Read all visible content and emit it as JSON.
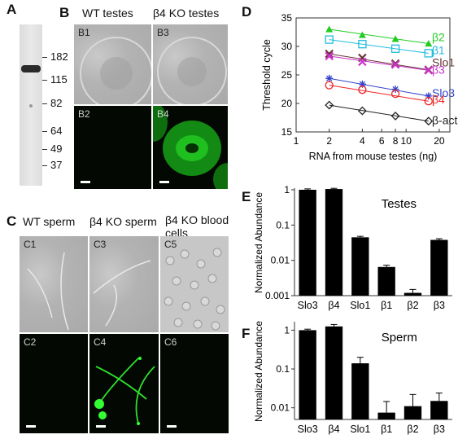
{
  "panel_labels": {
    "a": "A",
    "b": "B",
    "c": "C",
    "d": "D",
    "e": "E",
    "f": "F"
  },
  "panel_a": {
    "mw_markers": [
      "182",
      "115",
      "82",
      "64",
      "49",
      "37"
    ]
  },
  "panel_b": {
    "titles": [
      "WT testes",
      "β4 KO testes"
    ],
    "sublabels": [
      "B1",
      "B3",
      "B2",
      "B4"
    ]
  },
  "panel_c": {
    "titles": [
      "WT sperm",
      "β4 KO sperm",
      "β4 KO blood cells"
    ],
    "sublabels": [
      "C1",
      "C3",
      "C5",
      "C2",
      "C4",
      "C6"
    ]
  },
  "chart_data": [
    {
      "id": "D",
      "type": "scatter",
      "xlabel": "RNA from mouse testes (ng)",
      "ylabel": "Threshold cycle",
      "xscale": "log",
      "xlim": [
        1,
        25
      ],
      "ylim": [
        15,
        35
      ],
      "xticks": [
        "1",
        "2",
        "4",
        "6",
        "8",
        "10",
        "20"
      ],
      "yticks": [
        "15",
        "20",
        "25",
        "30",
        "35"
      ],
      "x": [
        2,
        4,
        8,
        16
      ],
      "series": [
        {
          "name": "β2",
          "color": "#22cc22",
          "marker": "triangle",
          "values": [
            33.0,
            32.0,
            31.3,
            30.5
          ]
        },
        {
          "name": "β1",
          "color": "#22bbdd",
          "marker": "square",
          "values": [
            31.2,
            30.4,
            29.6,
            28.8
          ]
        },
        {
          "name": "Slo1",
          "color": "#663333",
          "marker": "x",
          "values": [
            28.7,
            28.0,
            27.0,
            25.9
          ]
        },
        {
          "name": "β3",
          "color": "#cc33cc",
          "marker": "x",
          "values": [
            28.3,
            27.3,
            26.8,
            25.8
          ]
        },
        {
          "name": "Slo3",
          "color": "#3344cc",
          "marker": "star",
          "values": [
            24.4,
            23.4,
            22.5,
            21.3
          ]
        },
        {
          "name": "β4",
          "color": "#ee2222",
          "marker": "circle",
          "values": [
            23.2,
            22.4,
            21.7,
            20.4
          ]
        },
        {
          "name": "β-actin",
          "color": "#222222",
          "marker": "diamond",
          "values": [
            19.7,
            18.7,
            17.8,
            16.9
          ]
        }
      ]
    },
    {
      "id": "E",
      "type": "bar",
      "title": "Testes",
      "ylabel": "Normalized Abundance",
      "yscale": "log",
      "ylim": [
        0.001,
        1
      ],
      "yticks": [
        "1",
        "0.1",
        "0.01",
        "0.001"
      ],
      "categories": [
        "Slo3",
        "β4",
        "Slo1",
        "β1",
        "β2",
        "β3"
      ],
      "values": [
        1.0,
        1.05,
        0.045,
        0.0065,
        0.0012,
        0.038
      ],
      "errors": [
        0.06,
        0.05,
        0.003,
        0.0008,
        0.0003,
        0.003
      ]
    },
    {
      "id": "F",
      "type": "bar",
      "title": "Sperm",
      "ylabel": "Normalized Abundance",
      "yscale": "log",
      "ylim": [
        0.005,
        1.5
      ],
      "yticks": [
        "1",
        "0.1",
        "0.01"
      ],
      "categories": [
        "Slo3",
        "β4",
        "Slo1",
        "β1",
        "β2",
        "β3"
      ],
      "values": [
        1.0,
        1.25,
        0.14,
        0.0075,
        0.011,
        0.015
      ],
      "errors": [
        0.06,
        0.15,
        0.06,
        0.007,
        0.011,
        0.009
      ]
    }
  ]
}
